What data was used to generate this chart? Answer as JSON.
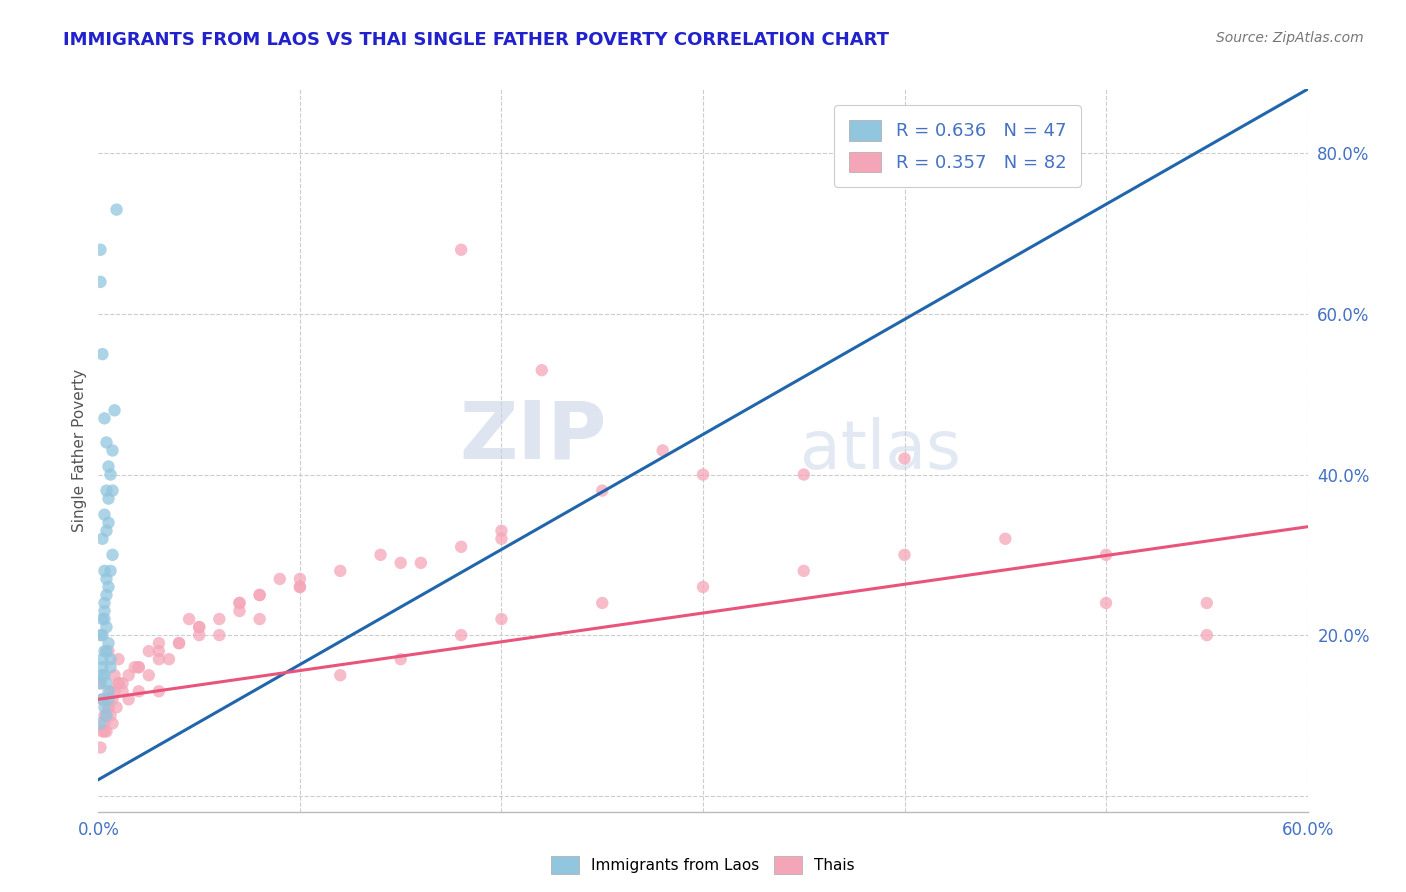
{
  "title": "IMMIGRANTS FROM LAOS VS THAI SINGLE FATHER POVERTY CORRELATION CHART",
  "source": "Source: ZipAtlas.com",
  "ylabel": "Single Father Poverty",
  "xmin": 0.0,
  "xmax": 0.6,
  "ymin": -0.02,
  "ymax": 0.88,
  "yticks": [
    0.0,
    0.2,
    0.4,
    0.6,
    0.8
  ],
  "ytick_labels": [
    "",
    "20.0%",
    "40.0%",
    "60.0%",
    "80.0%"
  ],
  "xticks": [
    0.0,
    0.1,
    0.2,
    0.3,
    0.4,
    0.5,
    0.6
  ],
  "xtick_labels": [
    "0.0%",
    "",
    "",
    "",
    "",
    "",
    "60.0%"
  ],
  "blue_R": 0.636,
  "blue_N": 47,
  "pink_R": 0.357,
  "pink_N": 82,
  "blue_color": "#92c5de",
  "pink_color": "#f4a6b8",
  "blue_line_color": "#2166ac",
  "pink_line_color": "#e8547a",
  "legend_label_blue": "Immigrants from Laos",
  "legend_label_pink": "Thais",
  "watermark_zip": "ZIP",
  "watermark_atlas": "atlas",
  "background_color": "#ffffff",
  "grid_color": "#cccccc",
  "title_color": "#2222cc",
  "blue_trend_x0": 0.0,
  "blue_trend_x1": 0.6,
  "blue_trend_y0": 0.02,
  "blue_trend_y1": 0.88,
  "pink_trend_x0": 0.0,
  "pink_trend_x1": 0.6,
  "pink_trend_y0": 0.12,
  "pink_trend_y1": 0.335,
  "blue_scatter_x": [
    0.001,
    0.002,
    0.001,
    0.003,
    0.002,
    0.004,
    0.003,
    0.005,
    0.004,
    0.006,
    0.002,
    0.003,
    0.004,
    0.005,
    0.003,
    0.002,
    0.001,
    0.004,
    0.005,
    0.006,
    0.001,
    0.002,
    0.003,
    0.004,
    0.002,
    0.003,
    0.004,
    0.005,
    0.006,
    0.007,
    0.002,
    0.003,
    0.004,
    0.005,
    0.003,
    0.004,
    0.005,
    0.006,
    0.007,
    0.008,
    0.001,
    0.002,
    0.003,
    0.004,
    0.005,
    0.007,
    0.009
  ],
  "blue_scatter_y": [
    0.14,
    0.12,
    0.09,
    0.11,
    0.17,
    0.1,
    0.15,
    0.13,
    0.18,
    0.16,
    0.2,
    0.22,
    0.25,
    0.19,
    0.23,
    0.16,
    0.68,
    0.14,
    0.12,
    0.17,
    0.2,
    0.22,
    0.24,
    0.27,
    0.15,
    0.18,
    0.21,
    0.26,
    0.28,
    0.3,
    0.32,
    0.35,
    0.38,
    0.34,
    0.28,
    0.33,
    0.37,
    0.4,
    0.43,
    0.48,
    0.64,
    0.55,
    0.47,
    0.44,
    0.41,
    0.38,
    0.73
  ],
  "pink_scatter_x": [
    0.001,
    0.002,
    0.003,
    0.004,
    0.005,
    0.006,
    0.007,
    0.008,
    0.009,
    0.01,
    0.012,
    0.015,
    0.018,
    0.02,
    0.025,
    0.03,
    0.035,
    0.04,
    0.045,
    0.05,
    0.06,
    0.07,
    0.08,
    0.09,
    0.1,
    0.12,
    0.14,
    0.16,
    0.18,
    0.2,
    0.001,
    0.002,
    0.003,
    0.004,
    0.005,
    0.006,
    0.007,
    0.008,
    0.01,
    0.012,
    0.015,
    0.02,
    0.025,
    0.03,
    0.04,
    0.05,
    0.06,
    0.07,
    0.08,
    0.1,
    0.12,
    0.15,
    0.18,
    0.2,
    0.25,
    0.3,
    0.35,
    0.4,
    0.45,
    0.5,
    0.003,
    0.005,
    0.01,
    0.02,
    0.03,
    0.05,
    0.07,
    0.1,
    0.15,
    0.2,
    0.25,
    0.3,
    0.4,
    0.5,
    0.55,
    0.18,
    0.22,
    0.28,
    0.35,
    0.55,
    0.03,
    0.08
  ],
  "pink_scatter_y": [
    0.14,
    0.12,
    0.1,
    0.08,
    0.18,
    0.13,
    0.09,
    0.15,
    0.11,
    0.17,
    0.14,
    0.12,
    0.16,
    0.13,
    0.15,
    0.18,
    0.17,
    0.19,
    0.22,
    0.21,
    0.2,
    0.23,
    0.25,
    0.27,
    0.26,
    0.28,
    0.3,
    0.29,
    0.31,
    0.32,
    0.06,
    0.08,
    0.09,
    0.1,
    0.11,
    0.1,
    0.12,
    0.13,
    0.14,
    0.13,
    0.15,
    0.16,
    0.18,
    0.17,
    0.19,
    0.2,
    0.22,
    0.24,
    0.25,
    0.27,
    0.15,
    0.17,
    0.2,
    0.22,
    0.24,
    0.26,
    0.28,
    0.3,
    0.32,
    0.3,
    0.08,
    0.11,
    0.14,
    0.16,
    0.19,
    0.21,
    0.24,
    0.26,
    0.29,
    0.33,
    0.38,
    0.4,
    0.42,
    0.24,
    0.2,
    0.68,
    0.53,
    0.43,
    0.4,
    0.24,
    0.13,
    0.22
  ]
}
